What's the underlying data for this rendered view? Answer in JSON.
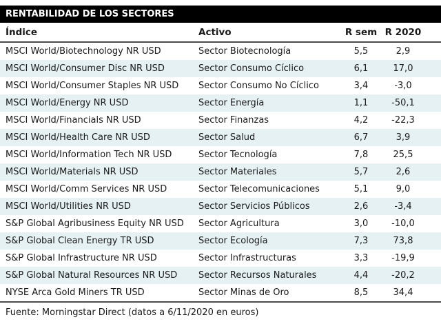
{
  "title": "RENTABILIDAD DE LOS SECTORES",
  "table": {
    "columns": [
      "Índice",
      "Activo",
      "R sem",
      "R 2020"
    ],
    "rows": [
      {
        "indice": "MSCI World/Biotechnology NR USD",
        "activo": "Sector Biotecnología",
        "rsem": "5,5",
        "r2020": "2,9"
      },
      {
        "indice": "MSCI World/Consumer Disc NR USD",
        "activo": "Sector Consumo Cíclico",
        "rsem": "6,1",
        "r2020": "17,0"
      },
      {
        "indice": "MSCI World/Consumer Staples NR USD",
        "activo": "Sector Consumo No Cíclico",
        "rsem": "3,4",
        "r2020": "-3,0"
      },
      {
        "indice": "MSCI World/Energy NR USD",
        "activo": "Sector Energía",
        "rsem": "1,1",
        "r2020": "-50,1"
      },
      {
        "indice": "MSCI World/Financials NR USD",
        "activo": "Sector Finanzas",
        "rsem": "4,2",
        "r2020": "-22,3"
      },
      {
        "indice": "MSCI World/Health Care NR USD",
        "activo": "Sector Salud",
        "rsem": "6,7",
        "r2020": "3,9"
      },
      {
        "indice": "MSCI World/Information Tech NR USD",
        "activo": "Sector Tecnología",
        "rsem": "7,8",
        "r2020": "25,5"
      },
      {
        "indice": "MSCI World/Materials NR USD",
        "activo": "Sector Materiales",
        "rsem": "5,7",
        "r2020": "2,6"
      },
      {
        "indice": "MSCI World/Comm Services NR USD",
        "activo": "Sector Telecomunicaciones",
        "rsem": "5,1",
        "r2020": "9,0"
      },
      {
        "indice": "MSCI World/Utilities NR USD",
        "activo": "Sector Servicios Públicos",
        "rsem": "2,6",
        "r2020": "-3,4"
      },
      {
        "indice": "S&P Global Agribusiness Equity NR USD",
        "activo": "Sector Agricultura",
        "rsem": "3,0",
        "r2020": "-10,0"
      },
      {
        "indice": "S&P Global Clean Energy TR USD",
        "activo": "Sector Ecología",
        "rsem": "7,3",
        "r2020": "73,8"
      },
      {
        "indice": "S&P Global Infrastructure NR USD",
        "activo": "Sector Infrastructuras",
        "rsem": "3,3",
        "r2020": "-19,9"
      },
      {
        "indice": "S&P Global Natural Resources NR USD",
        "activo": "Sector Recursos Naturales",
        "rsem": "4,4",
        "r2020": "-20,2"
      },
      {
        "indice": "NYSE Arca Gold Miners TR USD",
        "activo": "Sector Minas de Oro",
        "rsem": "8,5",
        "r2020": "34,4"
      }
    ]
  },
  "footer": "Fuente: Morningstar Direct (datos a 6/11/2020 en euros)",
  "colors": {
    "title_bg": "#000000",
    "title_text": "#ffffff",
    "alt_row_bg": "#e6f1f4",
    "rule": "#4a4a4a",
    "body_text": "#1a1a1a"
  }
}
